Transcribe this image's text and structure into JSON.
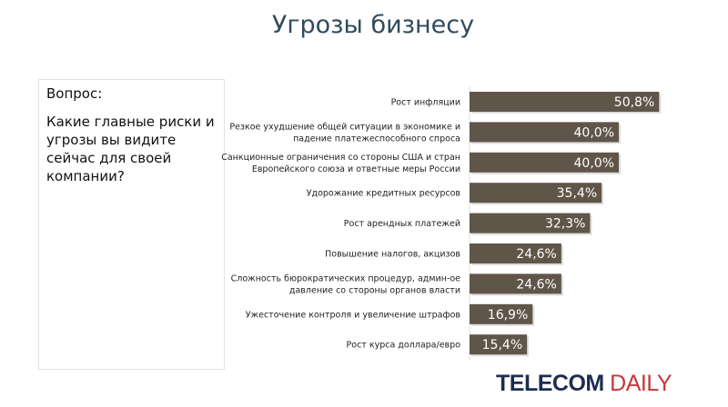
{
  "title": "Угрозы бизнесу",
  "question": {
    "label": "Вопрос:",
    "text": "Какие главные риски и угрозы вы видите сейчас для своей компании?"
  },
  "logo": {
    "part1": "TELECOM",
    "part2": " DAILY"
  },
  "colors": {
    "bar": "#5f5549",
    "title": "#2f4b5c",
    "logo_dark": "#1c2c52",
    "logo_red": "#c4373d"
  },
  "chart_data": {
    "type": "bar",
    "orientation": "horizontal",
    "categories": [
      [
        "Рост инфляции"
      ],
      [
        "Резкое ухудшение общей ситуации в экономике и",
        "падение платежеспособного спроса"
      ],
      [
        "Санкционные ограничения со стороны США и стран",
        "Европейского союза и ответные меры России"
      ],
      [
        "Удорожание кредитных ресурсов"
      ],
      [
        "Рост арендных платежей"
      ],
      [
        "Повышение налогов, акцизов"
      ],
      [
        "Сложность бюрократических процедур, админ-ое",
        "давление со стороны органов власти"
      ],
      [
        "Ужесточение контроля и увеличение штрафов"
      ],
      [
        "Рост курса доллара/евро"
      ]
    ],
    "values": [
      50.8,
      40.0,
      40.0,
      35.4,
      32.3,
      24.6,
      24.6,
      16.9,
      15.4
    ],
    "labels": [
      "50,8%",
      "40,0%",
      "40,0%",
      "35,4%",
      "32,3%",
      "24,6%",
      "24,6%",
      "16,9%",
      "15,4%"
    ],
    "grid": false
  }
}
